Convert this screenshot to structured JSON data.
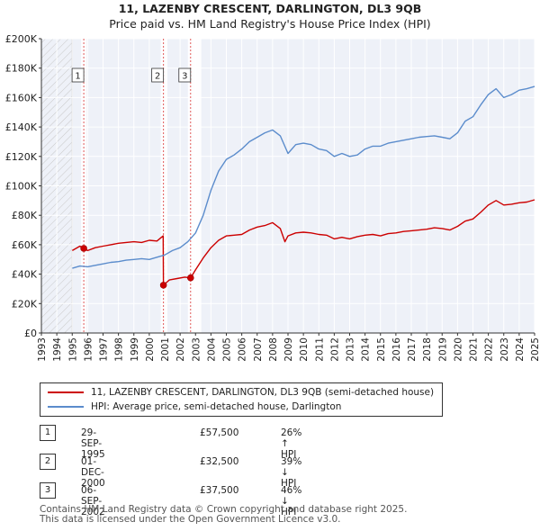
{
  "title_line1": "11, LAZENBY CRESCENT, DARLINGTON, DL3 9QB",
  "title_line2": "Price paid vs. HM Land Registry's House Price Index (HPI)",
  "chart_data": {
    "type": "line",
    "title": "11, LAZENBY CRESCENT, DARLINGTON, DL3 9QB",
    "subtitle": "Price paid vs. HM Land Registry's House Price Index (HPI)",
    "xlim": [
      1993,
      2025
    ],
    "ylim": [
      0,
      200000
    ],
    "y_ticks": [
      0,
      20000,
      40000,
      60000,
      80000,
      100000,
      120000,
      140000,
      160000,
      180000,
      200000
    ],
    "y_tick_labels": [
      "£0",
      "£20K",
      "£40K",
      "£60K",
      "£80K",
      "£100K",
      "£120K",
      "£140K",
      "£160K",
      "£180K",
      "£200K"
    ],
    "x_ticks": [
      1993,
      1994,
      1995,
      1996,
      1997,
      1998,
      1999,
      2000,
      2001,
      2002,
      2003,
      2004,
      2005,
      2006,
      2007,
      2008,
      2009,
      2010,
      2011,
      2012,
      2013,
      2014,
      2015,
      2016,
      2017,
      2018,
      2019,
      2020,
      2021,
      2022,
      2023,
      2024,
      2025
    ],
    "hatched_before": 1995.0,
    "shaded_bands": [
      [
        1995.75,
        1995.75
      ],
      [
        2000.92,
        2001.0
      ],
      [
        2002.68,
        2003.2
      ]
    ],
    "series": [
      {
        "name": "11, LAZENBY CRESCENT, DARLINGTON, DL3 9QB (semi-detached house)",
        "color": "#cc0000",
        "x": [
          1995.0,
          1995.5,
          1995.75,
          1996.0,
          1996.5,
          1997.0,
          1997.5,
          1998.0,
          1998.5,
          1999.0,
          1999.5,
          2000.0,
          2000.5,
          2000.9,
          2000.92,
          2001.3,
          2001.8,
          2002.3,
          2002.68,
          2003.0,
          2003.5,
          2004.0,
          2004.5,
          2005.0,
          2005.5,
          2006.0,
          2006.5,
          2007.0,
          2007.5,
          2008.0,
          2008.5,
          2008.8,
          2009.0,
          2009.5,
          2010.0,
          2010.5,
          2011.0,
          2011.5,
          2012.0,
          2012.5,
          2013.0,
          2013.5,
          2014.0,
          2014.5,
          2015.0,
          2015.5,
          2016.0,
          2016.5,
          2017.0,
          2017.5,
          2018.0,
          2018.5,
          2019.0,
          2019.5,
          2020.0,
          2020.5,
          2021.0,
          2021.5,
          2022.0,
          2022.5,
          2023.0,
          2023.5,
          2024.0,
          2024.5,
          2025.0
        ],
        "values": [
          56000,
          59000,
          57500,
          56000,
          58000,
          59000,
          60000,
          61000,
          61500,
          62000,
          61500,
          63000,
          62500,
          66000,
          32500,
          36000,
          37000,
          38000,
          37500,
          43000,
          51000,
          58000,
          63000,
          66000,
          66500,
          67000,
          70000,
          72000,
          73000,
          75000,
          71000,
          62000,
          66000,
          68000,
          68500,
          68000,
          67000,
          66500,
          64000,
          65000,
          64000,
          65500,
          66500,
          67000,
          66000,
          67500,
          68000,
          69000,
          69500,
          70000,
          70500,
          71500,
          71000,
          70000,
          72500,
          76000,
          77500,
          82000,
          87000,
          90000,
          87000,
          87500,
          88500,
          89000,
          90500
        ]
      },
      {
        "name": "HPI: Average price, semi-detached house, Darlington",
        "color": "#5b8ccc",
        "x": [
          1995.0,
          1995.5,
          1996.0,
          1996.5,
          1997.0,
          1997.5,
          1998.0,
          1998.5,
          1999.0,
          1999.5,
          2000.0,
          2000.5,
          2001.0,
          2001.5,
          2002.0,
          2002.5,
          2003.0,
          2003.5,
          2004.0,
          2004.5,
          2005.0,
          2005.5,
          2006.0,
          2006.5,
          2007.0,
          2007.5,
          2008.0,
          2008.5,
          2009.0,
          2009.5,
          2010.0,
          2010.5,
          2011.0,
          2011.5,
          2012.0,
          2012.5,
          2013.0,
          2013.5,
          2014.0,
          2014.5,
          2015.0,
          2015.5,
          2016.0,
          2016.5,
          2017.0,
          2017.5,
          2018.0,
          2018.5,
          2019.0,
          2019.5,
          2020.0,
          2020.5,
          2021.0,
          2021.5,
          2022.0,
          2022.5,
          2023.0,
          2023.5,
          2024.0,
          2024.5,
          2025.0
        ],
        "values": [
          44000,
          45500,
          45000,
          46000,
          47000,
          48000,
          48500,
          49500,
          50000,
          50500,
          50000,
          51500,
          53000,
          56000,
          58000,
          62000,
          68000,
          80000,
          97000,
          110000,
          118000,
          121000,
          125000,
          130000,
          133000,
          136000,
          138000,
          134000,
          122000,
          128000,
          129000,
          128000,
          125000,
          124000,
          120000,
          122000,
          120000,
          121000,
          125000,
          127000,
          127000,
          129000,
          130000,
          131000,
          132000,
          133000,
          133500,
          134000,
          133000,
          132000,
          136000,
          144000,
          147000,
          155000,
          162000,
          166000,
          160000,
          162000,
          165000,
          166000,
          167500
        ]
      }
    ],
    "sale_markers": [
      {
        "label": "1",
        "x": 1995.75,
        "value": 57500
      },
      {
        "label": "2",
        "x": 2000.92,
        "value": 32500
      },
      {
        "label": "3",
        "x": 2002.68,
        "value": 37500
      }
    ]
  },
  "legend": {
    "property": "11, LAZENBY CRESCENT, DARLINGTON, DL3 9QB (semi-detached house)",
    "hpi": "HPI: Average price, semi-detached house, Darlington"
  },
  "sales": [
    {
      "num": "1",
      "date": "29-SEP-1995",
      "price": "£57,500",
      "hpi": "26% ↑ HPI"
    },
    {
      "num": "2",
      "date": "01-DEC-2000",
      "price": "£32,500",
      "hpi": "39% ↓ HPI"
    },
    {
      "num": "3",
      "date": "06-SEP-2002",
      "price": "£37,500",
      "hpi": "46% ↓ HPI"
    }
  ],
  "footer": {
    "line1": "Contains HM Land Registry data © Crown copyright and database right 2025.",
    "line2": "This data is licensed under the Open Government Licence v3.0."
  }
}
